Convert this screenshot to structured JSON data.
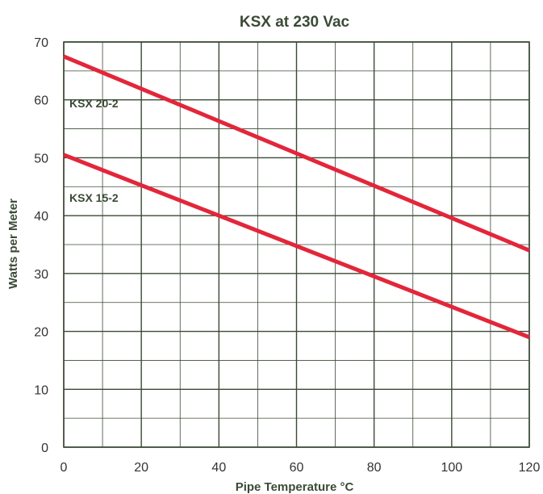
{
  "chart_data": {
    "type": "line",
    "title": "KSX at 230 Vac",
    "xlabel": "Pipe Temperature °C",
    "ylabel": "Watts per Meter",
    "xlim": [
      0,
      120
    ],
    "ylim": [
      0,
      70
    ],
    "x_ticks": [
      "0",
      "20",
      "40",
      "60",
      "80",
      "100",
      "120"
    ],
    "y_ticks": [
      "0",
      "10",
      "20",
      "30",
      "40",
      "50",
      "60",
      "70"
    ],
    "grid": true,
    "series": [
      {
        "name": "KSX 20-2",
        "x": [
          0,
          120
        ],
        "values": [
          67.5,
          34
        ],
        "color": "#e3263a"
      },
      {
        "name": "KSX 15-2",
        "x": [
          0,
          120
        ],
        "values": [
          50.5,
          19
        ],
        "color": "#e3263a"
      }
    ]
  }
}
